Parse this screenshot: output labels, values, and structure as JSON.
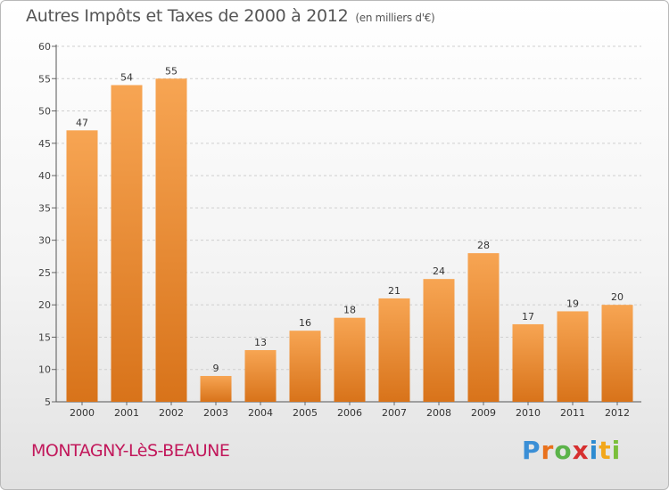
{
  "title": "Autres Impôts et Taxes de 2000 à 2012",
  "subtitle": "(en milliers d'€)",
  "commune": "MONTAGNY-LèS-BEAUNE",
  "brand": {
    "letters": [
      "P",
      "r",
      "o",
      "x",
      "i",
      "t",
      "i"
    ],
    "colors": [
      "#3b8fd6",
      "#e9711c",
      "#5bb34a",
      "#d62f2f",
      "#2d8bd1",
      "#f2a71b",
      "#7bbf3a"
    ]
  },
  "colors": {
    "bar_top": "#f7a553",
    "bar_bottom": "#d8731a",
    "title": "#555555",
    "commune": "#c2185b"
  },
  "chart_data": {
    "type": "bar",
    "categories": [
      "2000",
      "2001",
      "2002",
      "2003",
      "2004",
      "2005",
      "2006",
      "2007",
      "2008",
      "2009",
      "2010",
      "2011",
      "2012"
    ],
    "values": [
      47,
      54,
      55,
      9,
      13,
      16,
      18,
      21,
      24,
      28,
      17,
      19,
      20
    ],
    "ylim": [
      5,
      60
    ],
    "yticks": [
      5,
      10,
      15,
      20,
      25,
      30,
      35,
      40,
      45,
      50,
      55,
      60
    ],
    "grid": true,
    "title": "Autres Impôts et Taxes de 2000 à 2012",
    "xlabel": "",
    "ylabel": ""
  }
}
